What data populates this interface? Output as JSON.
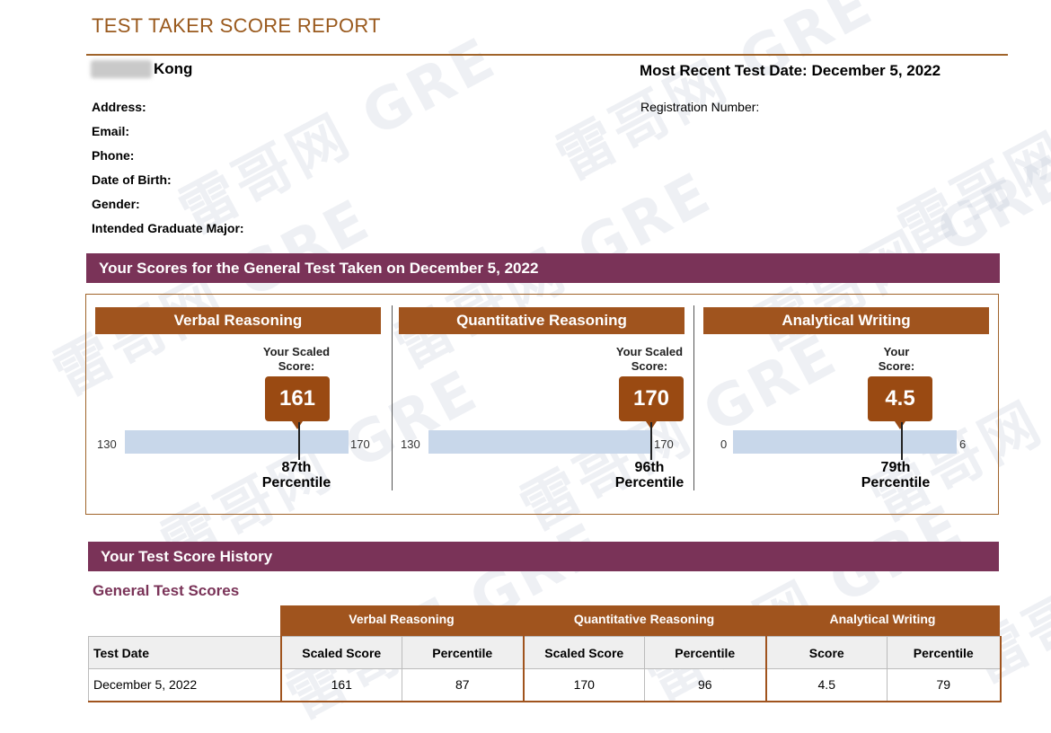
{
  "report": {
    "title": "TEST TAKER SCORE REPORT",
    "name": "Kong",
    "recent_test_date": "Most Recent Test Date: December 5, 2022",
    "registration_label": "Registration Number:"
  },
  "info_labels": [
    "Address:",
    "Email:",
    "Phone:",
    "Date of Birth:",
    "Gender:",
    "Intended Graduate Major:"
  ],
  "scores_section": {
    "heading": "Your Scores for the General Test Taken on December 5, 2022",
    "sections": [
      {
        "name": "Verbal Reasoning",
        "label_line1": "Your Scaled",
        "label_line2": "Score:",
        "score": "161",
        "min": "130",
        "max": "170",
        "percentile": "87th",
        "percentile_word": "Percentile",
        "score_value": 161,
        "min_value": 130,
        "max_value": 170
      },
      {
        "name": "Quantitative Reasoning",
        "label_line1": "Your Scaled",
        "label_line2": "Score:",
        "score": "170",
        "min": "130",
        "max": "170",
        "percentile": "96th",
        "percentile_word": "Percentile",
        "score_value": 170,
        "min_value": 130,
        "max_value": 170
      },
      {
        "name": "Analytical Writing",
        "label_line1": "Your",
        "label_line2": "Score:",
        "score": "4.5",
        "min": "0",
        "max": "6",
        "percentile": "79th",
        "percentile_word": "Percentile",
        "score_value": 4.5,
        "min_value": 0,
        "max_value": 6
      }
    ]
  },
  "history": {
    "heading": "Your Test Score History",
    "subheading": "General Test Scores",
    "groups": [
      "Verbal Reasoning",
      "Quantitative Reasoning",
      "Analytical Writing"
    ],
    "columns": [
      "Test Date",
      "Scaled Score",
      "Percentile",
      "Scaled Score",
      "Percentile",
      "Score",
      "Percentile"
    ],
    "rows": [
      [
        "December 5, 2022",
        "161",
        "87",
        "170",
        "96",
        "4.5",
        "79"
      ]
    ]
  },
  "watermark_text": "雷哥网 GRE",
  "colors": {
    "brown": "#a0541e",
    "plum": "#7a3358",
    "scale": "#c8d7ea"
  }
}
